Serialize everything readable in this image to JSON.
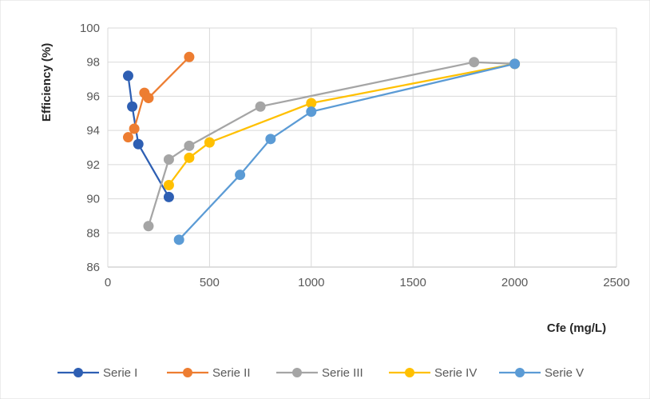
{
  "chart_data": {
    "type": "scatter",
    "title": "",
    "xlabel": "Cfe (mg/L)",
    "ylabel": "Efficiency (%)",
    "xlim": [
      0,
      2500
    ],
    "ylim": [
      86,
      100
    ],
    "xticks": [
      0,
      500,
      1000,
      1500,
      2000,
      2500
    ],
    "yticks": [
      86,
      88,
      90,
      92,
      94,
      96,
      98,
      100
    ],
    "grid": true,
    "legend_position": "bottom",
    "series": [
      {
        "name": "Serie I",
        "color": "#2e5fb3",
        "x": [
          100,
          120,
          150,
          300
        ],
        "y": [
          97.2,
          95.4,
          93.2,
          90.1
        ]
      },
      {
        "name": "Serie II",
        "color": "#ed7d31",
        "x": [
          100,
          130,
          180,
          200,
          400
        ],
        "y": [
          93.6,
          94.1,
          96.2,
          95.9,
          98.3
        ]
      },
      {
        "name": "Serie III",
        "color": "#a5a5a5",
        "x": [
          200,
          300,
          400,
          750,
          1800,
          2000
        ],
        "y": [
          88.4,
          92.3,
          93.1,
          95.4,
          98.0,
          97.9
        ]
      },
      {
        "name": "Serie IV",
        "color": "#ffc000",
        "x": [
          300,
          400,
          500,
          1000,
          2000
        ],
        "y": [
          90.8,
          92.4,
          93.3,
          95.6,
          97.9
        ]
      },
      {
        "name": "Serie V",
        "color": "#5b9bd5",
        "x": [
          350,
          650,
          800,
          1000,
          2000
        ],
        "y": [
          87.6,
          91.4,
          93.5,
          95.1,
          97.9
        ]
      }
    ]
  }
}
